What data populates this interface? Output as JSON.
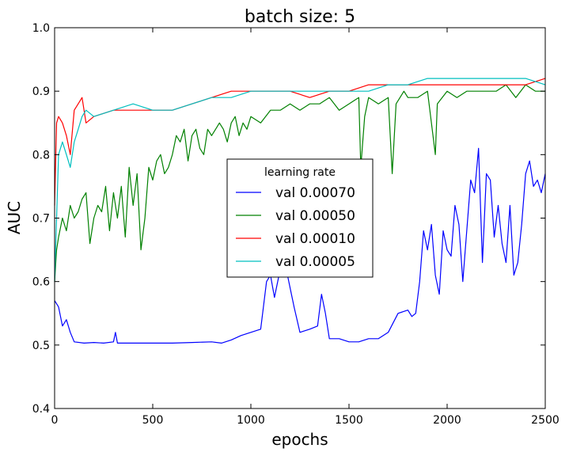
{
  "chart_data": {
    "type": "line",
    "title": "batch size: 5",
    "xlabel": "epochs",
    "ylabel": "AUC",
    "xlim": [
      0,
      2500
    ],
    "ylim": [
      0.4,
      1.0
    ],
    "xticks": [
      0,
      500,
      1000,
      1500,
      2000,
      2500
    ],
    "yticks": [
      0.4,
      0.5,
      0.6,
      0.7,
      0.8,
      0.9,
      1.0
    ],
    "xtick_labels": [
      "0",
      "500",
      "1000",
      "1500",
      "2000",
      "2500"
    ],
    "ytick_labels": [
      "0.4",
      "0.5",
      "0.6",
      "0.7",
      "0.8",
      "0.9",
      "1.0"
    ],
    "grid": false,
    "legend": {
      "title": "learning rate",
      "placement": "center"
    },
    "series": [
      {
        "name": "val 0.00070",
        "color": "#0000ff",
        "x": [
          0,
          20,
          40,
          60,
          80,
          100,
          150,
          200,
          250,
          300,
          310,
          320,
          400,
          500,
          600,
          700,
          800,
          850,
          900,
          950,
          1000,
          1050,
          1080,
          1100,
          1120,
          1150,
          1160,
          1180,
          1200,
          1220,
          1250,
          1300,
          1340,
          1360,
          1380,
          1400,
          1450,
          1500,
          1550,
          1600,
          1650,
          1700,
          1750,
          1800,
          1820,
          1840,
          1860,
          1880,
          1900,
          1920,
          1940,
          1960,
          1980,
          2000,
          2020,
          2040,
          2060,
          2080,
          2100,
          2120,
          2140,
          2160,
          2180,
          2200,
          2220,
          2240,
          2260,
          2280,
          2300,
          2320,
          2340,
          2360,
          2380,
          2400,
          2420,
          2440,
          2460,
          2480,
          2500
        ],
        "values": [
          0.57,
          0.56,
          0.53,
          0.54,
          0.52,
          0.505,
          0.503,
          0.504,
          0.503,
          0.505,
          0.52,
          0.503,
          0.503,
          0.503,
          0.503,
          0.504,
          0.505,
          0.503,
          0.508,
          0.515,
          0.52,
          0.525,
          0.6,
          0.61,
          0.575,
          0.62,
          0.63,
          0.62,
          0.59,
          0.56,
          0.52,
          0.525,
          0.53,
          0.58,
          0.55,
          0.51,
          0.51,
          0.505,
          0.505,
          0.51,
          0.51,
          0.52,
          0.55,
          0.555,
          0.545,
          0.55,
          0.6,
          0.68,
          0.65,
          0.69,
          0.61,
          0.58,
          0.68,
          0.65,
          0.64,
          0.72,
          0.69,
          0.6,
          0.68,
          0.76,
          0.74,
          0.81,
          0.63,
          0.77,
          0.76,
          0.67,
          0.72,
          0.66,
          0.63,
          0.72,
          0.61,
          0.63,
          0.69,
          0.77,
          0.79,
          0.75,
          0.76,
          0.74,
          0.77
        ]
      },
      {
        "name": "val 0.00050",
        "color": "#008000",
        "x": [
          0,
          10,
          20,
          40,
          60,
          80,
          100,
          120,
          140,
          160,
          180,
          200,
          220,
          240,
          260,
          280,
          300,
          320,
          340,
          360,
          380,
          400,
          420,
          440,
          460,
          480,
          500,
          520,
          540,
          560,
          580,
          600,
          620,
          640,
          660,
          680,
          700,
          720,
          740,
          760,
          780,
          800,
          820,
          840,
          860,
          880,
          900,
          920,
          940,
          960,
          980,
          1000,
          1050,
          1100,
          1150,
          1200,
          1250,
          1300,
          1350,
          1400,
          1450,
          1500,
          1550,
          1560,
          1580,
          1600,
          1650,
          1700,
          1720,
          1740,
          1780,
          1800,
          1850,
          1900,
          1940,
          1950,
          2000,
          2050,
          2100,
          2150,
          2200,
          2250,
          2300,
          2350,
          2400,
          2450,
          2500
        ],
        "values": [
          0.6,
          0.65,
          0.67,
          0.7,
          0.68,
          0.72,
          0.7,
          0.71,
          0.73,
          0.74,
          0.66,
          0.7,
          0.72,
          0.71,
          0.75,
          0.68,
          0.74,
          0.7,
          0.75,
          0.67,
          0.78,
          0.72,
          0.77,
          0.65,
          0.7,
          0.78,
          0.76,
          0.79,
          0.8,
          0.77,
          0.78,
          0.8,
          0.83,
          0.82,
          0.84,
          0.79,
          0.83,
          0.84,
          0.81,
          0.8,
          0.84,
          0.83,
          0.84,
          0.85,
          0.84,
          0.82,
          0.85,
          0.86,
          0.83,
          0.85,
          0.84,
          0.86,
          0.85,
          0.87,
          0.87,
          0.88,
          0.87,
          0.88,
          0.88,
          0.89,
          0.87,
          0.88,
          0.89,
          0.78,
          0.86,
          0.89,
          0.88,
          0.89,
          0.77,
          0.88,
          0.9,
          0.89,
          0.89,
          0.9,
          0.8,
          0.88,
          0.9,
          0.89,
          0.9,
          0.9,
          0.9,
          0.9,
          0.91,
          0.89,
          0.91,
          0.9,
          0.9
        ]
      },
      {
        "name": "val 0.00010",
        "color": "#ff0000",
        "x": [
          0,
          10,
          20,
          40,
          60,
          80,
          100,
          120,
          140,
          160,
          200,
          300,
          400,
          500,
          600,
          700,
          800,
          900,
          1000,
          1100,
          1200,
          1300,
          1400,
          1500,
          1600,
          1700,
          1800,
          1900,
          2000,
          2100,
          2200,
          2300,
          2400,
          2500
        ],
        "values": [
          0.72,
          0.85,
          0.86,
          0.85,
          0.83,
          0.8,
          0.87,
          0.88,
          0.89,
          0.85,
          0.86,
          0.87,
          0.87,
          0.87,
          0.87,
          0.88,
          0.89,
          0.9,
          0.9,
          0.9,
          0.9,
          0.89,
          0.9,
          0.9,
          0.91,
          0.91,
          0.91,
          0.91,
          0.91,
          0.91,
          0.91,
          0.91,
          0.91,
          0.92
        ]
      },
      {
        "name": "val 0.00005",
        "color": "#00bfbf",
        "x": [
          0,
          20,
          40,
          60,
          80,
          100,
          120,
          140,
          160,
          200,
          300,
          400,
          500,
          600,
          700,
          800,
          900,
          1000,
          1100,
          1200,
          1300,
          1400,
          1500,
          1600,
          1700,
          1800,
          1900,
          2000,
          2100,
          2200,
          2300,
          2400,
          2500
        ],
        "values": [
          0.6,
          0.8,
          0.82,
          0.8,
          0.78,
          0.82,
          0.84,
          0.86,
          0.87,
          0.86,
          0.87,
          0.88,
          0.87,
          0.87,
          0.88,
          0.89,
          0.89,
          0.9,
          0.9,
          0.9,
          0.9,
          0.9,
          0.9,
          0.9,
          0.91,
          0.91,
          0.92,
          0.92,
          0.92,
          0.92,
          0.92,
          0.92,
          0.91
        ]
      }
    ]
  }
}
